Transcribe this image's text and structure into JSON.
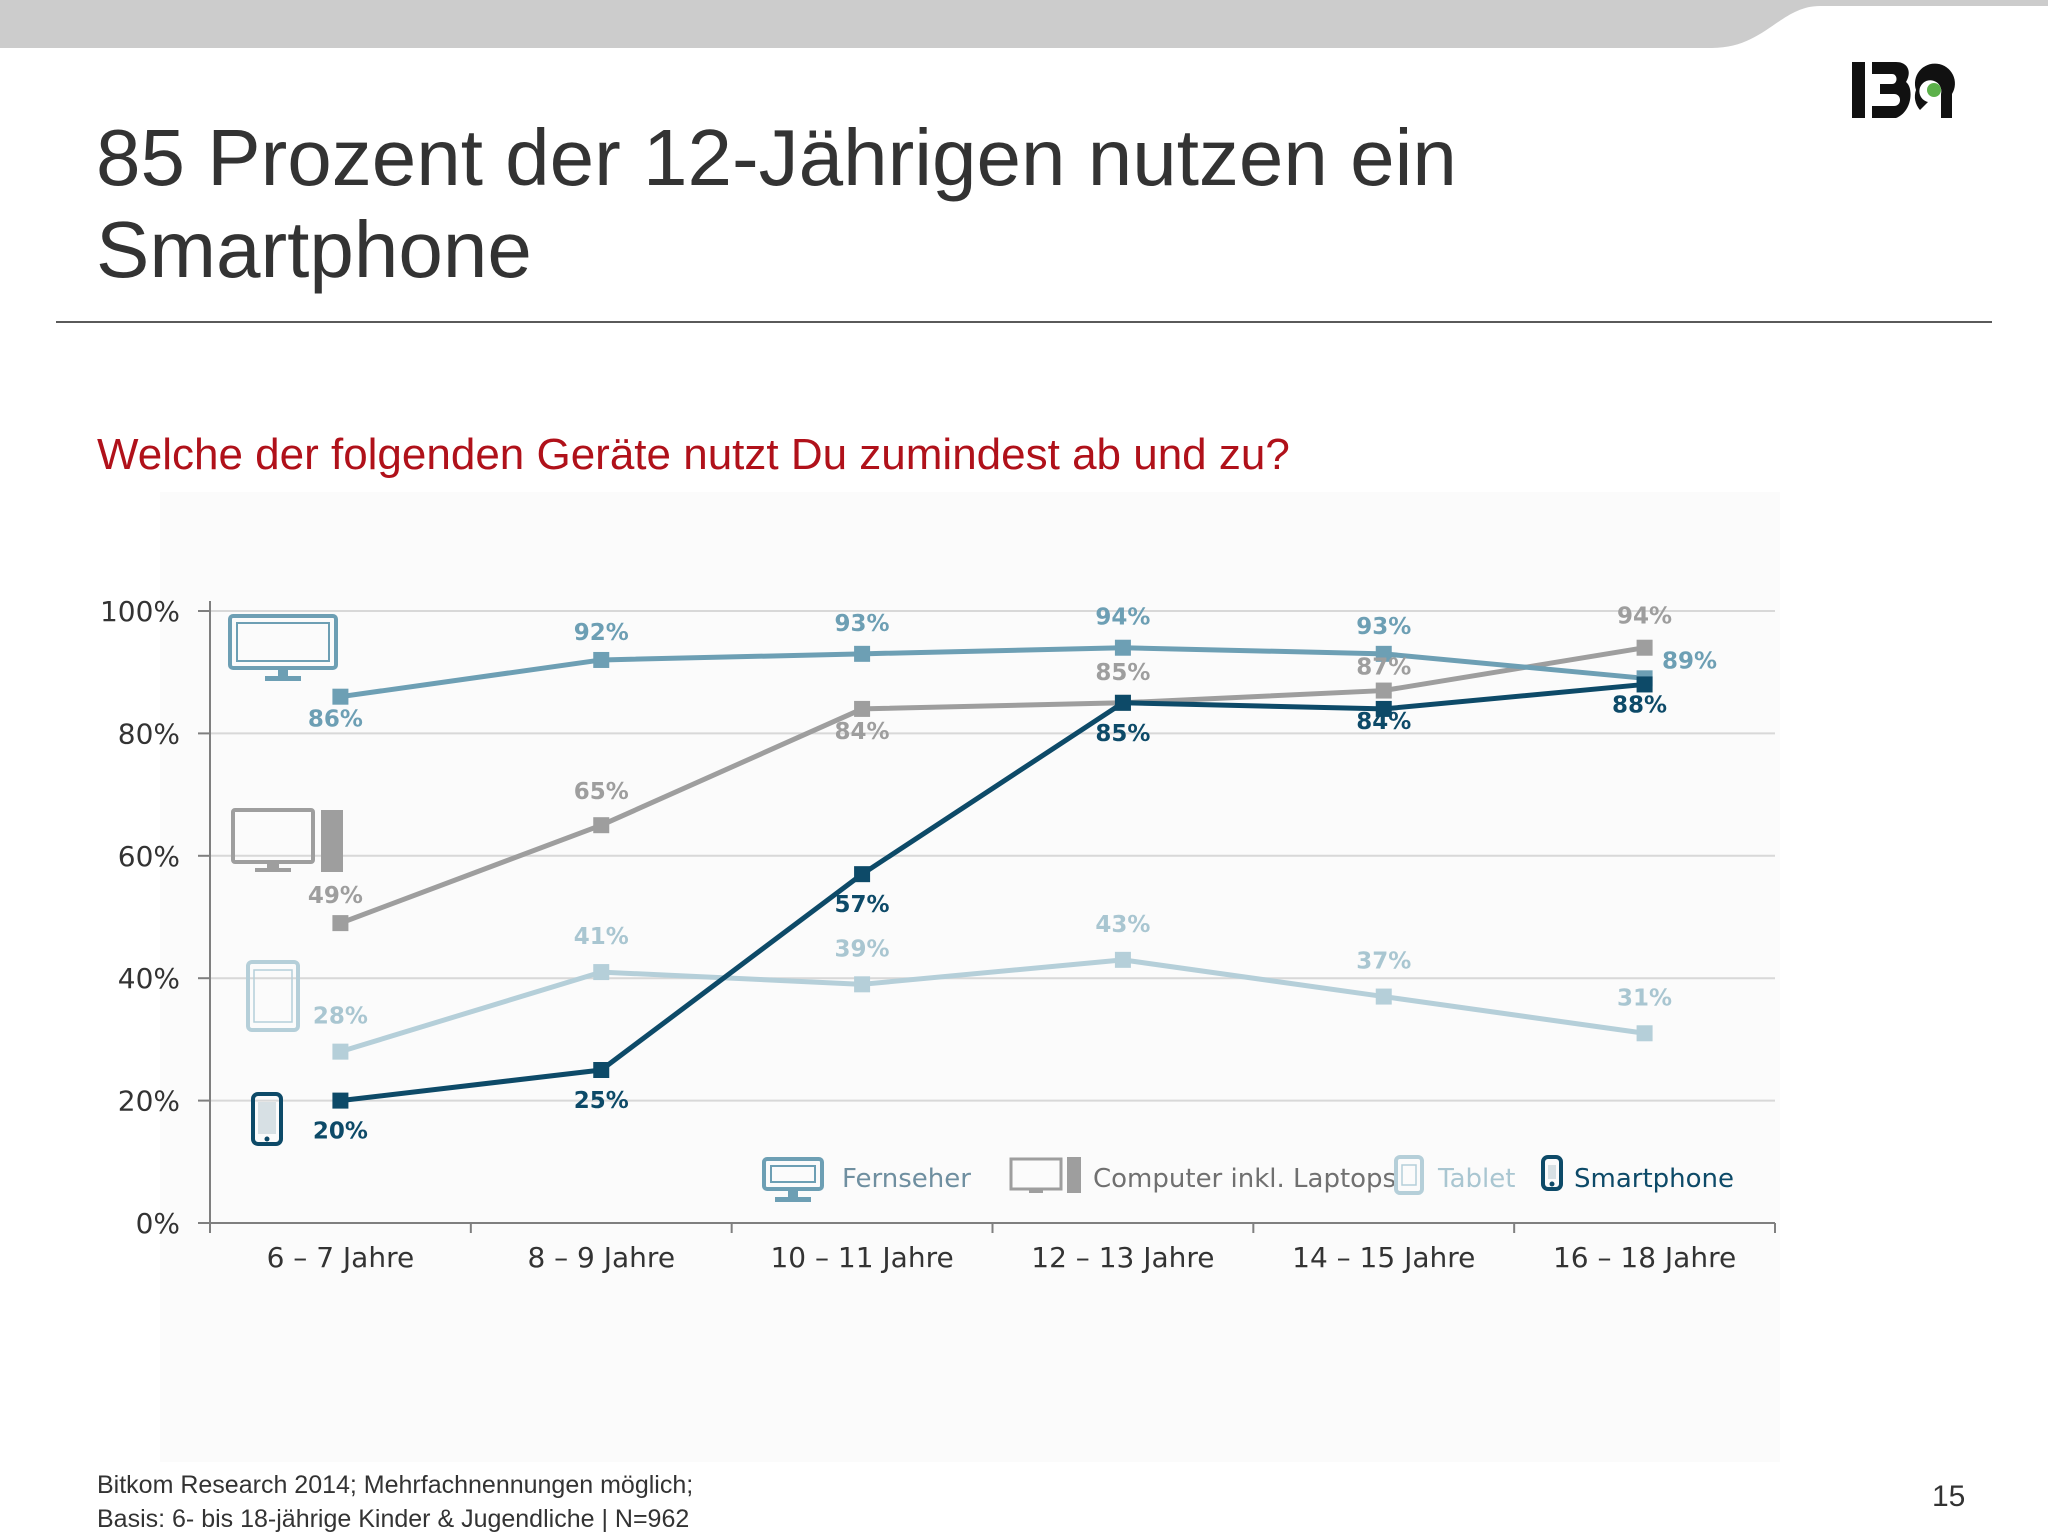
{
  "slide": {
    "title_line1": "85 Prozent der 12-Jährigen nutzen ein",
    "title_line2": "Smartphone",
    "question": "Welche der folgenden Geräte nutzt Du zumindest ab und zu?",
    "source_line1": "Bitkom Research 2014; Mehrfachnennungen möglich;",
    "source_line2": "Basis: 6- bis 18-jährige Kinder & Jugendliche | N=962",
    "page_number": "15",
    "logo_icon": "ibi-logo"
  },
  "colors": {
    "top_band": "#cccccc",
    "title_rule": "#5a5a5a",
    "question": "#b0111a",
    "fernseher": "#6d9fb4",
    "computer": "#9e9e9e",
    "tablet": "#b5cfd9",
    "smartphone": "#0d4a68",
    "gridline": "#d8d8d8",
    "axis": "#7f7f7f",
    "logo_dot": "#5cb14a"
  },
  "chart_data": {
    "type": "line",
    "categories": [
      "6 – 7 Jahre",
      "8 – 9 Jahre",
      "10 – 11 Jahre",
      "12 – 13 Jahre",
      "14 – 15 Jahre",
      "16 – 18 Jahre"
    ],
    "y_ticks": [
      "0%",
      "20%",
      "40%",
      "60%",
      "80%",
      "100%"
    ],
    "ylim": [
      0,
      100
    ],
    "grid": true,
    "legend_position": "bottom-right",
    "series": [
      {
        "name": "Fernseher",
        "key": "fernseher",
        "icon": "tv-icon",
        "values": [
          86,
          92,
          93,
          94,
          93,
          89
        ],
        "labels": [
          "86%",
          "92%",
          "93%",
          "94%",
          "93%",
          "89%"
        ]
      },
      {
        "name": "Computer inkl. Laptops",
        "key": "computer",
        "icon": "computer-icon",
        "values": [
          49,
          65,
          84,
          85,
          87,
          94
        ],
        "labels": [
          "49%",
          "65%",
          "84%",
          "85%",
          "87%",
          "94%"
        ]
      },
      {
        "name": "Tablet",
        "key": "tablet",
        "icon": "tablet-icon",
        "values": [
          28,
          41,
          39,
          43,
          37,
          31
        ],
        "labels": [
          "28%",
          "41%",
          "39%",
          "43%",
          "37%",
          "31%"
        ]
      },
      {
        "name": "Smartphone",
        "key": "smartphone",
        "icon": "smartphone-icon",
        "values": [
          20,
          25,
          57,
          85,
          84,
          88
        ],
        "labels": [
          "20%",
          "25%",
          "57%",
          "85%",
          "84%",
          "88%"
        ]
      }
    ]
  }
}
